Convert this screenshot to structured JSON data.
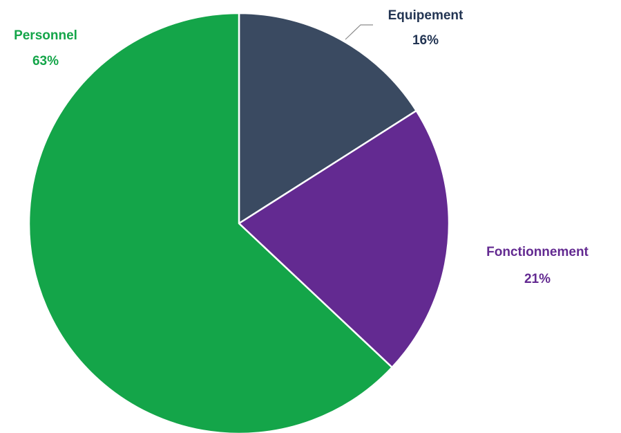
{
  "chart_data": {
    "type": "pie",
    "start_angle_deg": 0,
    "direction": "clockwise",
    "legend": "none",
    "slices": [
      {
        "label": "Equipement",
        "value": 16,
        "display": "16%",
        "color": "#3a4a61",
        "label_color": "#233553"
      },
      {
        "label": "Fonctionnement",
        "value": 21,
        "display": "21%",
        "color": "#632a91",
        "label_color": "#632a91"
      },
      {
        "label": "Personnel",
        "value": 63,
        "display": "63%",
        "color": "#14a549",
        "label_color": "#14a549"
      }
    ]
  }
}
